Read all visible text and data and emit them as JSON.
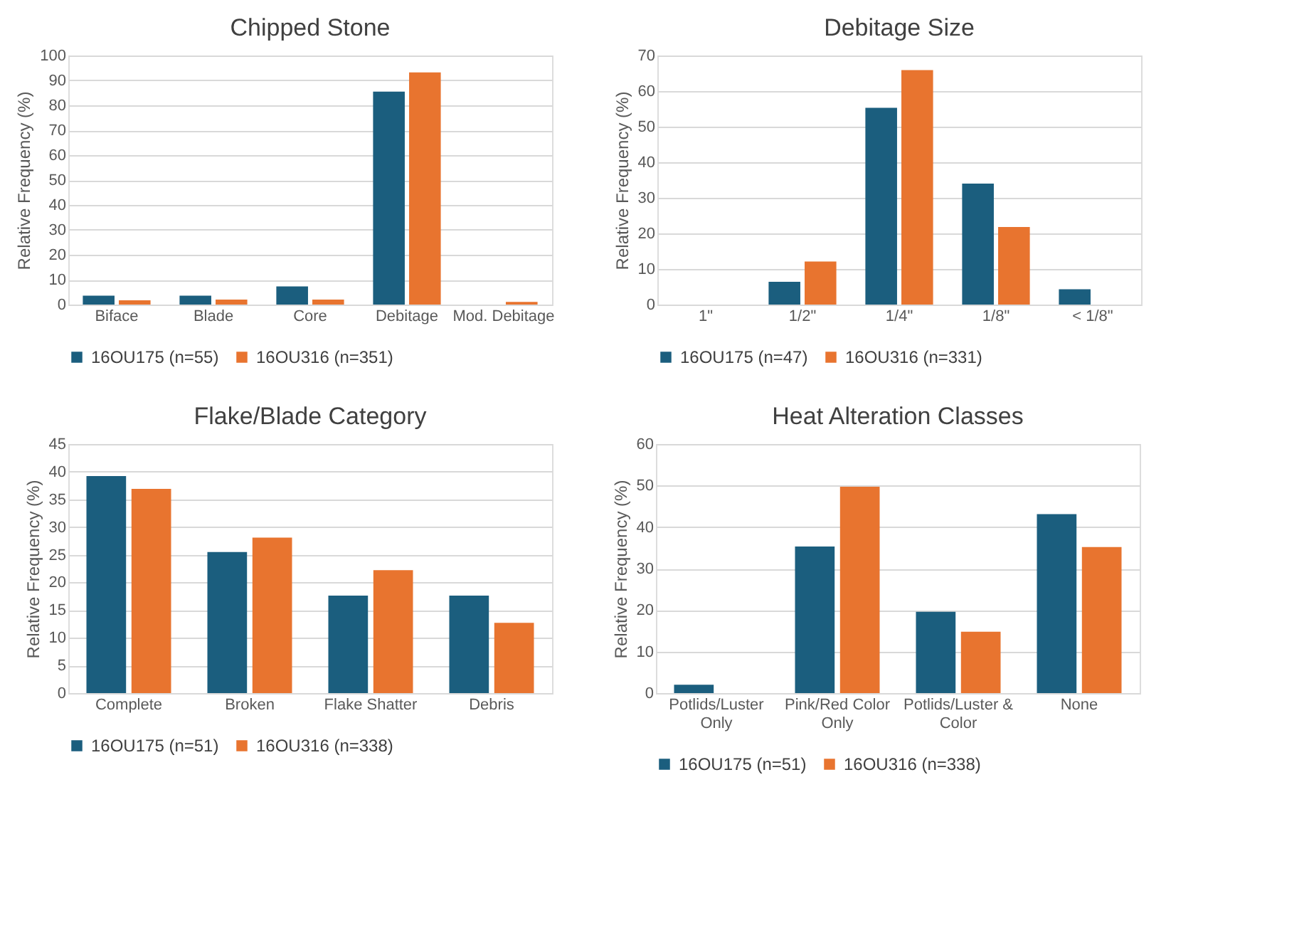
{
  "chart_data": [
    {
      "type": "bar",
      "title": "Chipped Stone",
      "ylabel": "Relative Frequency (%)",
      "categories": [
        "Biface",
        "Blade",
        "Core",
        "Debitage",
        "Mod. Debitage"
      ],
      "series": [
        {
          "name": "16OU175 (n=55)",
          "color": "#1b5e7e",
          "values": [
            3.6,
            3.6,
            7.3,
            85.5,
            0
          ]
        },
        {
          "name": "16OU316 (n=351)",
          "color": "#e8742f",
          "values": [
            1.7,
            2.0,
            2.0,
            93.2,
            1.1
          ]
        }
      ],
      "ylim": [
        0,
        100
      ],
      "yticks": [
        0,
        10,
        20,
        30,
        40,
        50,
        60,
        70,
        80,
        90,
        100
      ],
      "grid": "y",
      "legend": "bottom"
    },
    {
      "type": "bar",
      "title": "Debitage Size",
      "ylabel": "Relative Frequency (%)",
      "categories": [
        "1\"",
        "1/2\"",
        "1/4\"",
        "1/8\"",
        "< 1/8\""
      ],
      "series": [
        {
          "name": "16OU175 (n=47)",
          "color": "#1b5e7e",
          "values": [
            0,
            6.4,
            55.3,
            34.0,
            4.3
          ]
        },
        {
          "name": "16OU316 (n=331)",
          "color": "#e8742f",
          "values": [
            0,
            12.1,
            65.9,
            21.8,
            0
          ]
        }
      ],
      "ylim": [
        0,
        70
      ],
      "yticks": [
        0,
        10,
        20,
        30,
        40,
        50,
        60,
        70
      ],
      "grid": "y",
      "legend": "bottom"
    },
    {
      "type": "bar",
      "title": "Flake/Blade Category",
      "ylabel": "Relative Frequency (%)",
      "categories": [
        "Complete",
        "Broken",
        "Flake Shatter",
        "Debris"
      ],
      "series": [
        {
          "name": "16OU175 (n=51)",
          "color": "#1b5e7e",
          "values": [
            39.2,
            25.5,
            17.6,
            17.6
          ]
        },
        {
          "name": "16OU316 (n=338)",
          "color": "#e8742f",
          "values": [
            36.9,
            28.1,
            22.2,
            12.7
          ]
        }
      ],
      "ylim": [
        0,
        45
      ],
      "yticks": [
        0,
        5,
        10,
        15,
        20,
        25,
        30,
        35,
        40,
        45
      ],
      "grid": "y",
      "legend": "bottom"
    },
    {
      "type": "bar",
      "title": "Heat Alteration Classes",
      "ylabel": "Relative Frequency (%)",
      "categories": [
        "Potlids/Luster Only",
        "Pink/Red Color Only",
        "Potlids/Luster & Color",
        "None"
      ],
      "series": [
        {
          "name": "16OU175 (n=51)",
          "color": "#1b5e7e",
          "values": [
            2.0,
            35.3,
            19.6,
            43.1
          ]
        },
        {
          "name": "16OU316 (n=338)",
          "color": "#e8742f",
          "values": [
            0,
            49.7,
            14.8,
            35.2
          ]
        }
      ],
      "ylim": [
        0,
        60
      ],
      "yticks": [
        0,
        10,
        20,
        30,
        40,
        50,
        60
      ],
      "grid": "y",
      "legend": "bottom"
    }
  ]
}
